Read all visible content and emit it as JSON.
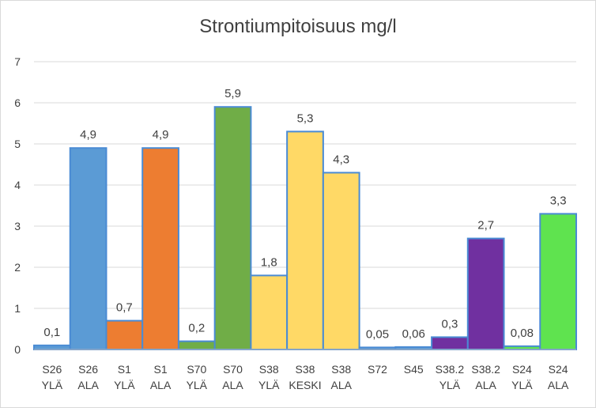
{
  "chart_data": {
    "type": "bar",
    "title": "Strontiumpitoisuus mg/l",
    "xlabel": "",
    "ylabel": "",
    "ylim": [
      0,
      7
    ],
    "yticks": [
      "0",
      "1",
      "2",
      "3",
      "4",
      "5",
      "6",
      "7"
    ],
    "grid": true,
    "legend": "none",
    "categories": [
      [
        "S26",
        "YLÄ"
      ],
      [
        "S26",
        "ALA"
      ],
      [
        "S1",
        "YLÄ"
      ],
      [
        "S1",
        "ALA"
      ],
      [
        "S70",
        "YLÄ"
      ],
      [
        "S70",
        "ALA"
      ],
      [
        "S38",
        "YLÄ"
      ],
      [
        "S38",
        "KESKI"
      ],
      [
        "S38",
        "ALA"
      ],
      [
        "S72"
      ],
      [
        "S45"
      ],
      [
        "S38.2",
        "YLÄ"
      ],
      [
        "S38.2",
        "ALA"
      ],
      [
        "S24",
        "YLÄ"
      ],
      [
        "S24",
        "ALA"
      ]
    ],
    "values": [
      0.1,
      4.9,
      0.7,
      4.9,
      0.2,
      5.9,
      1.8,
      5.3,
      4.3,
      0.05,
      0.06,
      0.3,
      2.7,
      0.08,
      3.3
    ],
    "data_labels": [
      "0,1",
      "4,9",
      "0,7",
      "4,9",
      "0,2",
      "5,9",
      "1,8",
      "5,3",
      "4,3",
      "0,05",
      "0,06",
      "0,3",
      "2,7",
      "0,08",
      "3,3"
    ],
    "colors": [
      "#5b9bd5",
      "#5b9bd5",
      "#ed7d31",
      "#ed7d31",
      "#70ad47",
      "#70ad47",
      "#ffd966",
      "#ffd966",
      "#ffd966",
      "#5b9bd5",
      "#5b9bd5",
      "#7030a0",
      "#7030a0",
      "#5fe34f",
      "#5fe34f"
    ],
    "bar_outline": "#4a8bd4",
    "grid_color": "#d9d9d9",
    "text_color": "#404040"
  }
}
